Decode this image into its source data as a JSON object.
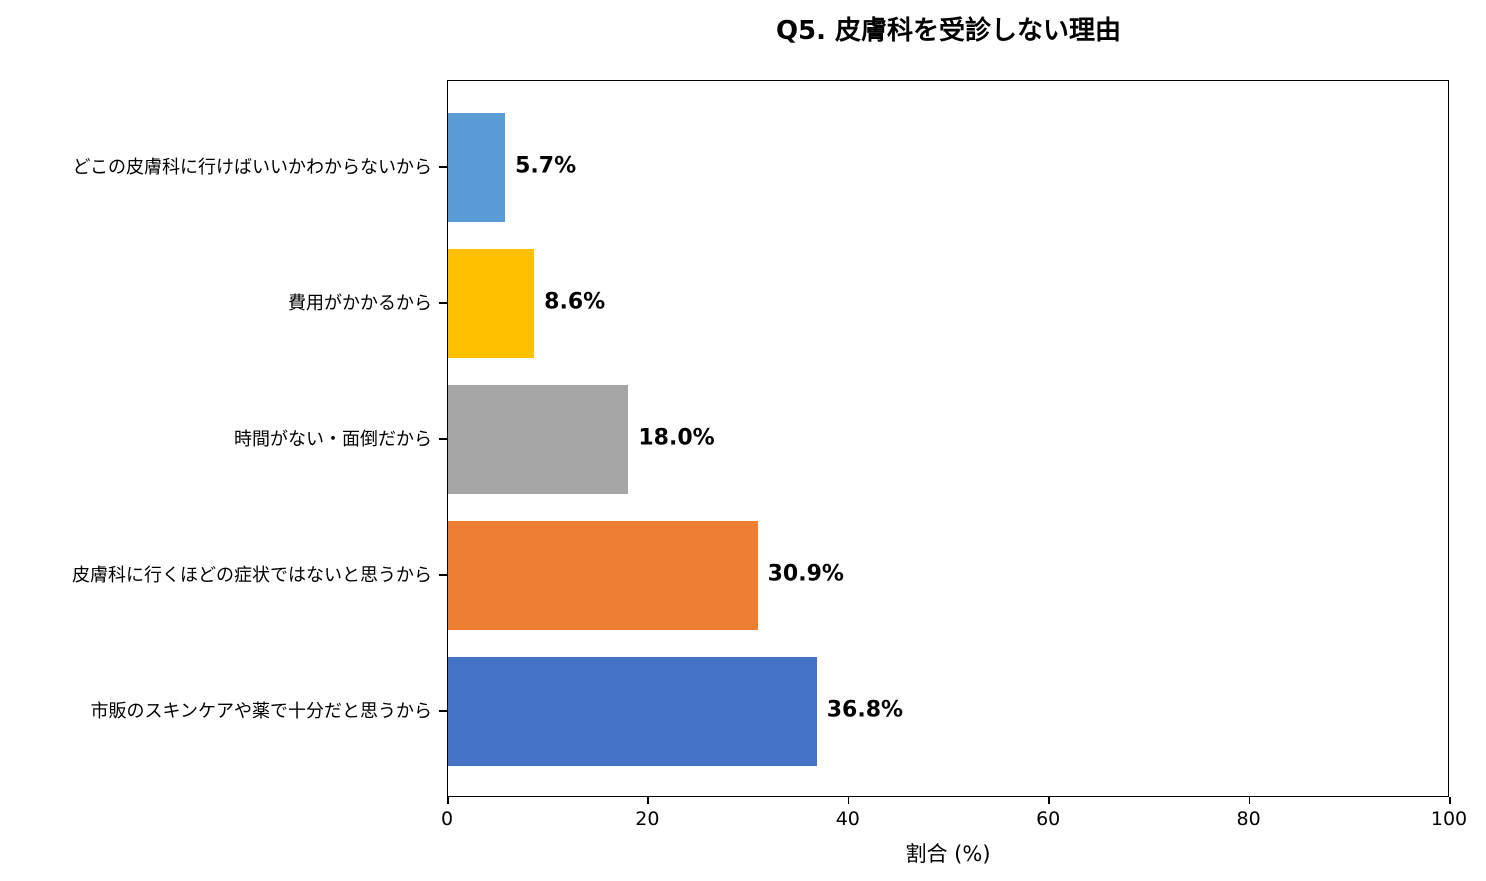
{
  "chart_data": {
    "type": "bar",
    "orientation": "horizontal",
    "title": "Q5. 皮膚科を受診しない理由",
    "xlabel": "割合 (%)",
    "ylabel": "",
    "xlim": [
      0,
      100
    ],
    "xticks": [
      "0",
      "20",
      "40",
      "60",
      "80",
      "100"
    ],
    "grid": false,
    "legend": null,
    "categories": [
      "どこの皮膚科に行けばいいかわからないから",
      "費用がかかるから",
      "時間がない・面倒だから",
      "皮膚科に行くほどの症状ではないと思うから",
      "市販のスキンケアや薬で十分だと思うから"
    ],
    "values": [
      5.7,
      8.6,
      18.0,
      30.9,
      36.8
    ],
    "value_labels": [
      "5.7%",
      "8.6%",
      "18.0%",
      "30.9%",
      "36.8%"
    ],
    "colors": [
      "#5b9bd5",
      "#ffc000",
      "#a5a5a5",
      "#ed7d31",
      "#4472c4"
    ]
  }
}
